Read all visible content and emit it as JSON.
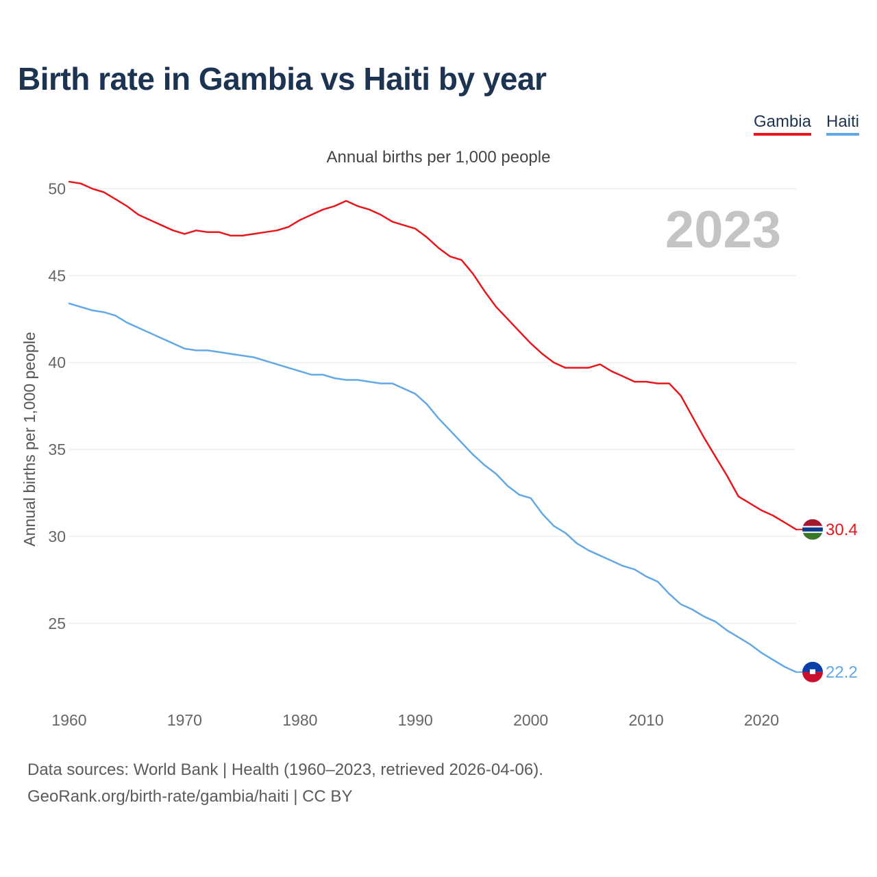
{
  "title": "Birth rate in Gambia vs Haiti by year",
  "subtitle": "Annual births per 1,000 people",
  "legend": [
    {
      "name": "Gambia",
      "color": "#e8161b"
    },
    {
      "name": "Haiti",
      "color": "#63a8e6"
    }
  ],
  "footer": {
    "line1": "Data sources: World Bank | Health (1960–2023, retrieved 2026-04-06).",
    "line2": "GeoRank.org/birth-rate/gambia/haiti | CC BY"
  },
  "chart_data": {
    "type": "line",
    "title": "Birth rate in Gambia vs Haiti by year",
    "ylabel": "Annual births per 1,000 people",
    "xlabel": "",
    "year_label": "2023",
    "xlim": [
      1960,
      2023
    ],
    "ylim": [
      20.5,
      51
    ],
    "x_ticks": [
      1960,
      1970,
      1980,
      1990,
      2000,
      2010,
      2020
    ],
    "y_ticks": [
      25,
      30,
      35,
      40,
      45,
      50
    ],
    "grid": true,
    "legend_position": "top-right",
    "x": [
      1960,
      1961,
      1962,
      1963,
      1964,
      1965,
      1966,
      1967,
      1968,
      1969,
      1970,
      1971,
      1972,
      1973,
      1974,
      1975,
      1976,
      1977,
      1978,
      1979,
      1980,
      1981,
      1982,
      1983,
      1984,
      1985,
      1986,
      1987,
      1988,
      1989,
      1990,
      1991,
      1992,
      1993,
      1994,
      1995,
      1996,
      1997,
      1998,
      1999,
      2000,
      2001,
      2002,
      2003,
      2004,
      2005,
      2006,
      2007,
      2008,
      2009,
      2010,
      2011,
      2012,
      2013,
      2014,
      2015,
      2016,
      2017,
      2018,
      2019,
      2020,
      2021,
      2022,
      2023
    ],
    "series": [
      {
        "name": "Gambia",
        "color": "#e8161b",
        "end_label": "30.4",
        "values": [
          50.4,
          50.3,
          50.0,
          49.8,
          49.4,
          49.0,
          48.5,
          48.2,
          47.9,
          47.6,
          47.4,
          47.6,
          47.5,
          47.5,
          47.3,
          47.3,
          47.4,
          47.5,
          47.6,
          47.8,
          48.2,
          48.5,
          48.8,
          49.0,
          49.3,
          49.0,
          48.8,
          48.5,
          48.1,
          47.9,
          47.7,
          47.2,
          46.6,
          46.1,
          45.9,
          45.1,
          44.1,
          43.2,
          42.5,
          41.8,
          41.1,
          40.5,
          40.0,
          39.7,
          39.7,
          39.7,
          39.9,
          39.5,
          39.2,
          38.9,
          38.9,
          38.8,
          38.8,
          38.1,
          36.9,
          35.7,
          34.6,
          33.5,
          32.3,
          31.9,
          31.5,
          31.2,
          30.8,
          30.4
        ]
      },
      {
        "name": "Haiti",
        "color": "#63a8e6",
        "end_label": "22.2",
        "values": [
          43.4,
          43.2,
          43.0,
          42.9,
          42.7,
          42.3,
          42.0,
          41.7,
          41.4,
          41.1,
          40.8,
          40.7,
          40.7,
          40.6,
          40.5,
          40.4,
          40.3,
          40.1,
          39.9,
          39.7,
          39.5,
          39.3,
          39.3,
          39.1,
          39.0,
          39.0,
          38.9,
          38.8,
          38.8,
          38.5,
          38.2,
          37.6,
          36.8,
          36.1,
          35.4,
          34.7,
          34.1,
          33.6,
          32.9,
          32.4,
          32.2,
          31.3,
          30.6,
          30.2,
          29.6,
          29.2,
          28.9,
          28.6,
          28.3,
          28.1,
          27.7,
          27.4,
          26.7,
          26.1,
          25.8,
          25.4,
          25.1,
          24.6,
          24.2,
          23.8,
          23.3,
          22.9,
          22.5,
          22.2
        ]
      }
    ]
  }
}
